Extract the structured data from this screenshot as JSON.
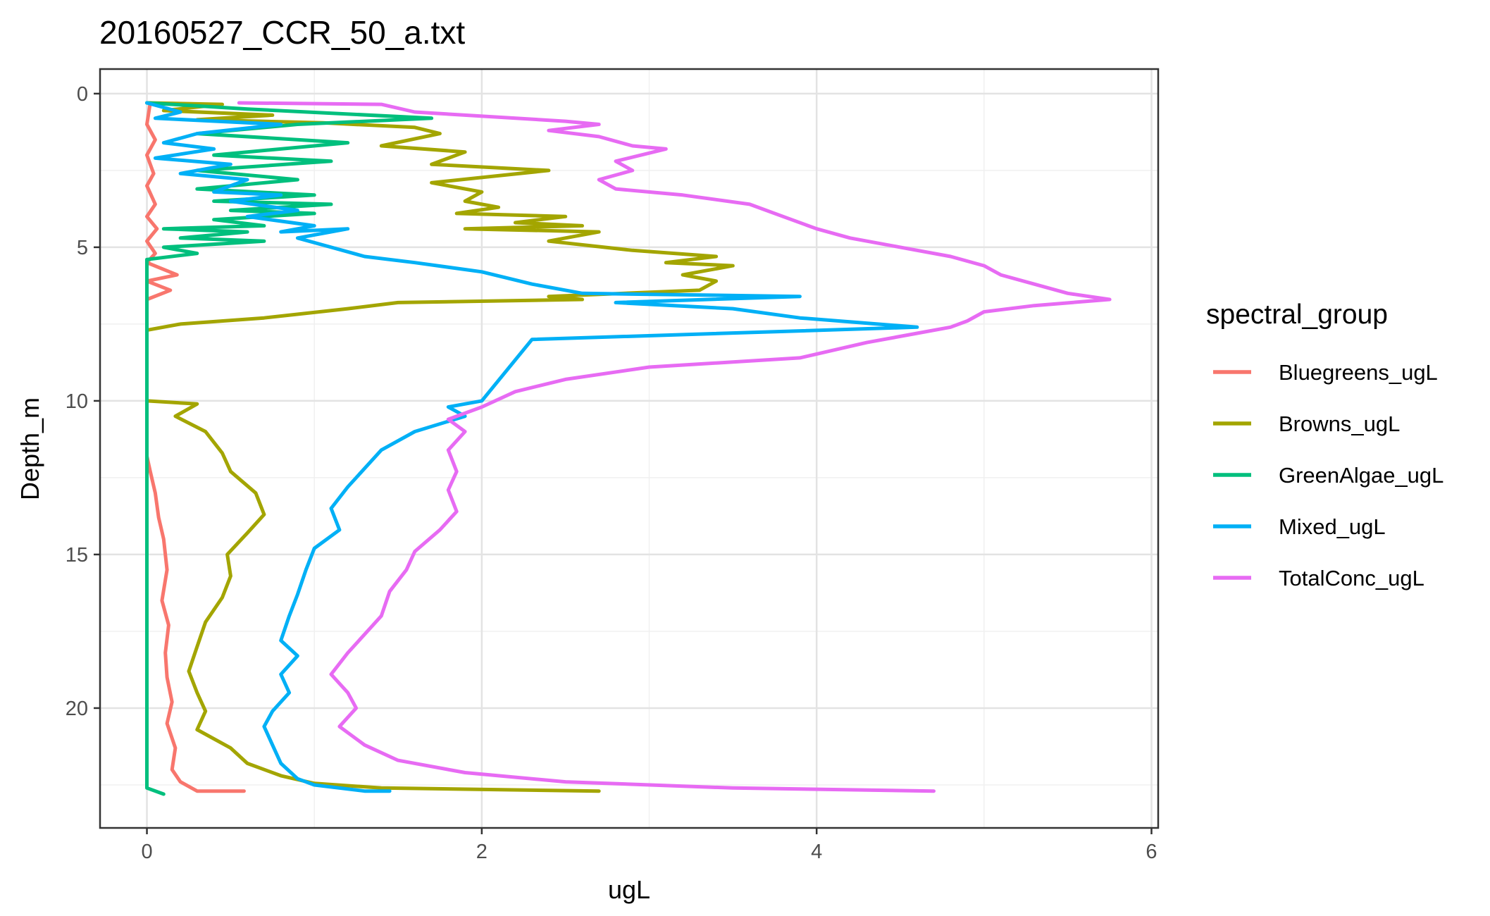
{
  "chart_data": {
    "type": "line",
    "title": "20160527_CCR_50_a.txt",
    "xlabel": "ugL",
    "ylabel": "Depth_m",
    "xlim": [
      -0.28,
      6.04
    ],
    "ylim": [
      -0.8,
      23.9
    ],
    "y_reversed": true,
    "x_ticks": [
      0,
      2,
      4,
      6
    ],
    "y_ticks": [
      0,
      5,
      10,
      15,
      20
    ],
    "grid": true,
    "legend": {
      "title": "spectral_group",
      "position": "right"
    },
    "series": [
      {
        "name": "Bluegreens_ugL",
        "color": "#F8766D",
        "points": [
          [
            0.02,
            0.3
          ],
          [
            0.0,
            1.0
          ],
          [
            0.05,
            1.5
          ],
          [
            0.0,
            2.0
          ],
          [
            0.04,
            2.6
          ],
          [
            0.0,
            3.0
          ],
          [
            0.05,
            3.6
          ],
          [
            0.0,
            4.0
          ],
          [
            0.06,
            4.4
          ],
          [
            0.0,
            4.8
          ],
          [
            0.05,
            5.2
          ],
          [
            0.0,
            5.5
          ],
          [
            0.18,
            5.9
          ],
          [
            0.0,
            6.1
          ],
          [
            0.14,
            6.4
          ],
          [
            0.0,
            6.7
          ],
          [
            0.0,
            7.0
          ],
          [
            0.0,
            11.8
          ],
          [
            0.02,
            12.3
          ],
          [
            0.05,
            13.0
          ],
          [
            0.07,
            13.8
          ],
          [
            0.1,
            14.5
          ],
          [
            0.12,
            15.5
          ],
          [
            0.09,
            16.5
          ],
          [
            0.13,
            17.3
          ],
          [
            0.11,
            18.2
          ],
          [
            0.12,
            19.0
          ],
          [
            0.15,
            19.8
          ],
          [
            0.12,
            20.5
          ],
          [
            0.17,
            21.3
          ],
          [
            0.15,
            22.0
          ],
          [
            0.2,
            22.4
          ],
          [
            0.3,
            22.7
          ],
          [
            0.58,
            22.7
          ]
        ]
      },
      {
        "name": "Browns_ugL",
        "color": "#A3A500",
        "points": [
          [
            0.0,
            0.3
          ],
          [
            0.45,
            0.35
          ],
          [
            0.1,
            0.55
          ],
          [
            0.75,
            0.7
          ],
          [
            0.3,
            0.85
          ],
          [
            1.05,
            0.95
          ],
          [
            1.6,
            1.1
          ],
          [
            1.75,
            1.3
          ],
          [
            1.4,
            1.7
          ],
          [
            1.9,
            1.9
          ],
          [
            1.7,
            2.3
          ],
          [
            2.4,
            2.5
          ],
          [
            1.7,
            2.9
          ],
          [
            2.0,
            3.2
          ],
          [
            1.9,
            3.5
          ],
          [
            2.1,
            3.7
          ],
          [
            1.85,
            3.9
          ],
          [
            2.5,
            4.0
          ],
          [
            2.2,
            4.2
          ],
          [
            2.6,
            4.3
          ],
          [
            1.9,
            4.4
          ],
          [
            2.7,
            4.5
          ],
          [
            2.4,
            4.8
          ],
          [
            2.9,
            5.1
          ],
          [
            3.4,
            5.3
          ],
          [
            3.1,
            5.5
          ],
          [
            3.5,
            5.6
          ],
          [
            3.2,
            5.9
          ],
          [
            3.4,
            6.1
          ],
          [
            3.3,
            6.4
          ],
          [
            2.4,
            6.6
          ],
          [
            2.6,
            6.7
          ],
          [
            1.5,
            6.8
          ],
          [
            1.2,
            7.0
          ],
          [
            0.7,
            7.3
          ],
          [
            0.2,
            7.5
          ],
          [
            0.0,
            7.7
          ],
          [
            0.0,
            10.0
          ],
          [
            0.3,
            10.1
          ],
          [
            0.17,
            10.5
          ],
          [
            0.35,
            11.0
          ],
          [
            0.45,
            11.7
          ],
          [
            0.5,
            12.3
          ],
          [
            0.65,
            13.0
          ],
          [
            0.7,
            13.7
          ],
          [
            0.6,
            14.3
          ],
          [
            0.48,
            15.0
          ],
          [
            0.5,
            15.7
          ],
          [
            0.45,
            16.4
          ],
          [
            0.35,
            17.2
          ],
          [
            0.3,
            18.0
          ],
          [
            0.25,
            18.8
          ],
          [
            0.3,
            19.5
          ],
          [
            0.35,
            20.1
          ],
          [
            0.3,
            20.7
          ],
          [
            0.5,
            21.3
          ],
          [
            0.6,
            21.8
          ],
          [
            0.8,
            22.2
          ],
          [
            1.0,
            22.45
          ],
          [
            1.4,
            22.6
          ],
          [
            2.7,
            22.7
          ]
        ]
      },
      {
        "name": "GreenAlgae_ugL",
        "color": "#00BF7D",
        "points": [
          [
            0.0,
            0.3
          ],
          [
            0.3,
            0.4
          ],
          [
            0.6,
            0.5
          ],
          [
            1.7,
            0.8
          ],
          [
            0.9,
            1.0
          ],
          [
            0.3,
            1.3
          ],
          [
            1.2,
            1.6
          ],
          [
            0.4,
            2.0
          ],
          [
            1.1,
            2.2
          ],
          [
            0.3,
            2.5
          ],
          [
            0.9,
            2.8
          ],
          [
            0.3,
            3.1
          ],
          [
            1.0,
            3.3
          ],
          [
            0.4,
            3.5
          ],
          [
            1.1,
            3.6
          ],
          [
            0.5,
            3.8
          ],
          [
            1.0,
            3.9
          ],
          [
            0.4,
            4.1
          ],
          [
            0.7,
            4.3
          ],
          [
            0.1,
            4.4
          ],
          [
            0.6,
            4.5
          ],
          [
            0.2,
            4.7
          ],
          [
            0.7,
            4.8
          ],
          [
            0.1,
            5.0
          ],
          [
            0.3,
            5.2
          ],
          [
            0.0,
            5.4
          ],
          [
            0.0,
            7.0
          ],
          [
            0.0,
            22.6
          ],
          [
            0.1,
            22.8
          ]
        ]
      },
      {
        "name": "Mixed_ugL",
        "color": "#00B0F6",
        "points": [
          [
            0.0,
            0.3
          ],
          [
            0.2,
            0.6
          ],
          [
            0.05,
            0.8
          ],
          [
            0.8,
            1.0
          ],
          [
            0.3,
            1.3
          ],
          [
            0.1,
            1.6
          ],
          [
            0.4,
            1.8
          ],
          [
            0.05,
            2.1
          ],
          [
            0.5,
            2.3
          ],
          [
            0.2,
            2.6
          ],
          [
            0.6,
            2.8
          ],
          [
            0.4,
            3.2
          ],
          [
            0.8,
            3.3
          ],
          [
            0.5,
            3.5
          ],
          [
            0.9,
            3.8
          ],
          [
            0.6,
            4.0
          ],
          [
            1.0,
            4.3
          ],
          [
            0.8,
            4.5
          ],
          [
            1.2,
            4.4
          ],
          [
            0.9,
            4.7
          ],
          [
            1.1,
            5.0
          ],
          [
            1.3,
            5.3
          ],
          [
            1.6,
            5.5
          ],
          [
            2.0,
            5.8
          ],
          [
            2.3,
            6.2
          ],
          [
            2.6,
            6.5
          ],
          [
            3.9,
            6.6
          ],
          [
            2.8,
            6.8
          ],
          [
            3.5,
            7.0
          ],
          [
            3.9,
            7.3
          ],
          [
            4.6,
            7.6
          ],
          [
            2.3,
            8.0
          ],
          [
            2.0,
            10.0
          ],
          [
            1.8,
            10.2
          ],
          [
            1.9,
            10.5
          ],
          [
            1.6,
            11.0
          ],
          [
            1.4,
            11.6
          ],
          [
            1.3,
            12.2
          ],
          [
            1.2,
            12.8
          ],
          [
            1.1,
            13.5
          ],
          [
            1.15,
            14.2
          ],
          [
            1.0,
            14.8
          ],
          [
            0.95,
            15.5
          ],
          [
            0.9,
            16.3
          ],
          [
            0.85,
            17.0
          ],
          [
            0.8,
            17.8
          ],
          [
            0.9,
            18.3
          ],
          [
            0.8,
            18.9
          ],
          [
            0.85,
            19.5
          ],
          [
            0.75,
            20.1
          ],
          [
            0.7,
            20.6
          ],
          [
            0.75,
            21.2
          ],
          [
            0.8,
            21.8
          ],
          [
            0.9,
            22.3
          ],
          [
            1.0,
            22.5
          ],
          [
            1.3,
            22.7
          ],
          [
            1.45,
            22.7
          ]
        ]
      },
      {
        "name": "TotalConc_ugL",
        "color": "#E76BF3",
        "points": [
          [
            0.55,
            0.3
          ],
          [
            1.4,
            0.35
          ],
          [
            1.6,
            0.6
          ],
          [
            2.5,
            0.9
          ],
          [
            2.7,
            1.0
          ],
          [
            2.4,
            1.2
          ],
          [
            2.7,
            1.4
          ],
          [
            2.9,
            1.7
          ],
          [
            3.1,
            1.8
          ],
          [
            2.8,
            2.2
          ],
          [
            2.9,
            2.5
          ],
          [
            2.7,
            2.8
          ],
          [
            2.8,
            3.1
          ],
          [
            3.2,
            3.3
          ],
          [
            3.6,
            3.6
          ],
          [
            3.8,
            4.0
          ],
          [
            4.0,
            4.4
          ],
          [
            4.2,
            4.7
          ],
          [
            4.5,
            5.0
          ],
          [
            4.8,
            5.3
          ],
          [
            5.0,
            5.6
          ],
          [
            5.1,
            5.9
          ],
          [
            5.3,
            6.2
          ],
          [
            5.5,
            6.5
          ],
          [
            5.75,
            6.7
          ],
          [
            5.3,
            6.9
          ],
          [
            5.0,
            7.1
          ],
          [
            4.9,
            7.4
          ],
          [
            4.8,
            7.6
          ],
          [
            4.6,
            7.8
          ],
          [
            4.3,
            8.1
          ],
          [
            3.9,
            8.6
          ],
          [
            3.0,
            8.9
          ],
          [
            2.5,
            9.3
          ],
          [
            2.2,
            9.7
          ],
          [
            2.0,
            10.2
          ],
          [
            1.8,
            10.6
          ],
          [
            1.9,
            11.0
          ],
          [
            1.8,
            11.6
          ],
          [
            1.85,
            12.3
          ],
          [
            1.8,
            12.9
          ],
          [
            1.85,
            13.6
          ],
          [
            1.75,
            14.2
          ],
          [
            1.6,
            14.9
          ],
          [
            1.55,
            15.5
          ],
          [
            1.45,
            16.2
          ],
          [
            1.4,
            17.0
          ],
          [
            1.3,
            17.6
          ],
          [
            1.2,
            18.2
          ],
          [
            1.1,
            18.9
          ],
          [
            1.2,
            19.5
          ],
          [
            1.25,
            20.0
          ],
          [
            1.15,
            20.6
          ],
          [
            1.3,
            21.2
          ],
          [
            1.5,
            21.7
          ],
          [
            1.9,
            22.1
          ],
          [
            2.5,
            22.4
          ],
          [
            3.5,
            22.6
          ],
          [
            4.7,
            22.7
          ]
        ]
      }
    ]
  }
}
